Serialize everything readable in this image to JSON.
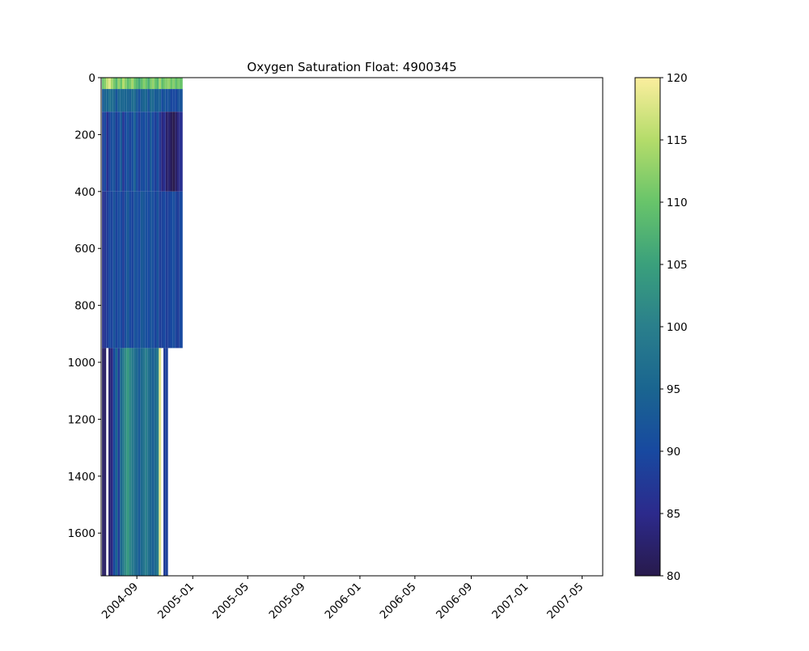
{
  "chart_data": {
    "type": "heatmap",
    "title": "Oxygen Saturation Float: 4900345",
    "xlabel": "",
    "ylabel": "",
    "x_axis": {
      "type": "date",
      "ticks": [
        "2004-09",
        "2005-01",
        "2005-05",
        "2005-09",
        "2006-01",
        "2006-05",
        "2006-09",
        "2007-01",
        "2007-05"
      ],
      "range": [
        "2004-06-15",
        "2007-06-15"
      ]
    },
    "y_axis": {
      "range": [
        1750,
        0
      ],
      "inverted": true,
      "ticks": [
        0,
        200,
        400,
        600,
        800,
        1000,
        1200,
        1400,
        1600
      ]
    },
    "colorbar": {
      "colormap": "haline-like (dark navy → blue → teal → green → pale yellow)",
      "range": [
        80,
        120
      ],
      "ticks": [
        80,
        85,
        90,
        95,
        100,
        105,
        110,
        115,
        120
      ]
    },
    "data_extent": {
      "x_start": "2004-06-15",
      "x_end": "2004-12-10",
      "shallow_profiles_max_depth": 950,
      "deep_profiles_max_depth": 1750,
      "deep_profiles_end": "2004-11-15"
    },
    "profiles": [
      {
        "date": "2004-06-17",
        "surface": 110,
        "upper": 88,
        "mid": 86,
        "deep": 82
      },
      {
        "date": "2004-06-21",
        "surface": 112,
        "upper": 90,
        "mid": 87,
        "deep": 82
      },
      {
        "date": "2004-06-26",
        "surface": 116,
        "upper": 86,
        "mid": 88,
        "deep": null
      },
      {
        "date": "2004-07-01",
        "surface": 118,
        "upper": 89,
        "mid": 90,
        "deep": 83
      },
      {
        "date": "2004-07-06",
        "surface": 114,
        "upper": 91,
        "mid": 89,
        "deep": 84
      },
      {
        "date": "2004-07-11",
        "surface": 111,
        "upper": 92,
        "mid": 92,
        "deep": 90
      },
      {
        "date": "2004-07-16",
        "surface": 108,
        "upper": 88,
        "mid": 89,
        "deep": 95
      },
      {
        "date": "2004-07-21",
        "surface": 113,
        "upper": 90,
        "mid": 91,
        "deep": 88
      },
      {
        "date": "2004-07-26",
        "surface": 110,
        "upper": 93,
        "mid": 90,
        "deep": 96
      },
      {
        "date": "2004-07-31",
        "surface": 115,
        "upper": 87,
        "mid": 88,
        "deep": 99
      },
      {
        "date": "2004-08-05",
        "surface": 112,
        "upper": 90,
        "mid": 91,
        "deep": 102
      },
      {
        "date": "2004-08-10",
        "surface": 109,
        "upper": 92,
        "mid": 93,
        "deep": 104
      },
      {
        "date": "2004-08-15",
        "surface": 111,
        "upper": 89,
        "mid": 90,
        "deep": 101
      },
      {
        "date": "2004-08-20",
        "surface": 114,
        "upper": 91,
        "mid": 89,
        "deep": 99
      },
      {
        "date": "2004-08-25",
        "surface": 110,
        "upper": 94,
        "mid": 92,
        "deep": 97
      },
      {
        "date": "2004-08-30",
        "surface": 108,
        "upper": 90,
        "mid": 91,
        "deep": 95
      },
      {
        "date": "2004-09-04",
        "surface": 106,
        "upper": 88,
        "mid": 90,
        "deep": 93
      },
      {
        "date": "2004-09-09",
        "surface": 109,
        "upper": 91,
        "mid": 93,
        "deep": 96
      },
      {
        "date": "2004-09-14",
        "surface": 112,
        "upper": 90,
        "mid": 92,
        "deep": 98
      },
      {
        "date": "2004-09-19",
        "surface": 110,
        "upper": 92,
        "mid": 91,
        "deep": 100
      },
      {
        "date": "2004-09-24",
        "surface": 107,
        "upper": 89,
        "mid": 90,
        "deep": 97
      },
      {
        "date": "2004-09-29",
        "surface": 111,
        "upper": 93,
        "mid": 92,
        "deep": 95
      },
      {
        "date": "2004-10-04",
        "surface": 113,
        "upper": 90,
        "mid": 91,
        "deep": 94
      },
      {
        "date": "2004-10-09",
        "surface": 110,
        "upper": 88,
        "mid": 89,
        "deep": 96
      },
      {
        "date": "2004-10-14",
        "surface": 108,
        "upper": 91,
        "mid": 92,
        "deep": 99
      },
      {
        "date": "2004-10-19",
        "surface": 114,
        "upper": 87,
        "mid": 88,
        "deep": 118
      },
      {
        "date": "2004-10-24",
        "surface": 109,
        "upper": 84,
        "mid": 89,
        "deep": null
      },
      {
        "date": "2004-10-29",
        "surface": 111,
        "upper": 86,
        "mid": 90,
        "deep": 88
      },
      {
        "date": "2004-11-03",
        "surface": 112,
        "upper": 82,
        "mid": 88,
        "deep": 89
      },
      {
        "date": "2004-11-08",
        "surface": 113,
        "upper": 83,
        "mid": 89,
        "deep": null
      },
      {
        "date": "2004-11-13",
        "surface": 110,
        "upper": 81,
        "mid": 90,
        "deep": null
      },
      {
        "date": "2004-11-18",
        "surface": 112,
        "upper": 80,
        "mid": 91,
        "deep": null
      },
      {
        "date": "2004-11-23",
        "surface": 109,
        "upper": 82,
        "mid": 89,
        "deep": null
      },
      {
        "date": "2004-11-28",
        "surface": 111,
        "upper": 84,
        "mid": 88,
        "deep": null
      },
      {
        "date": "2004-12-03",
        "surface": 110,
        "upper": 86,
        "mid": 90,
        "deep": null
      }
    ]
  }
}
